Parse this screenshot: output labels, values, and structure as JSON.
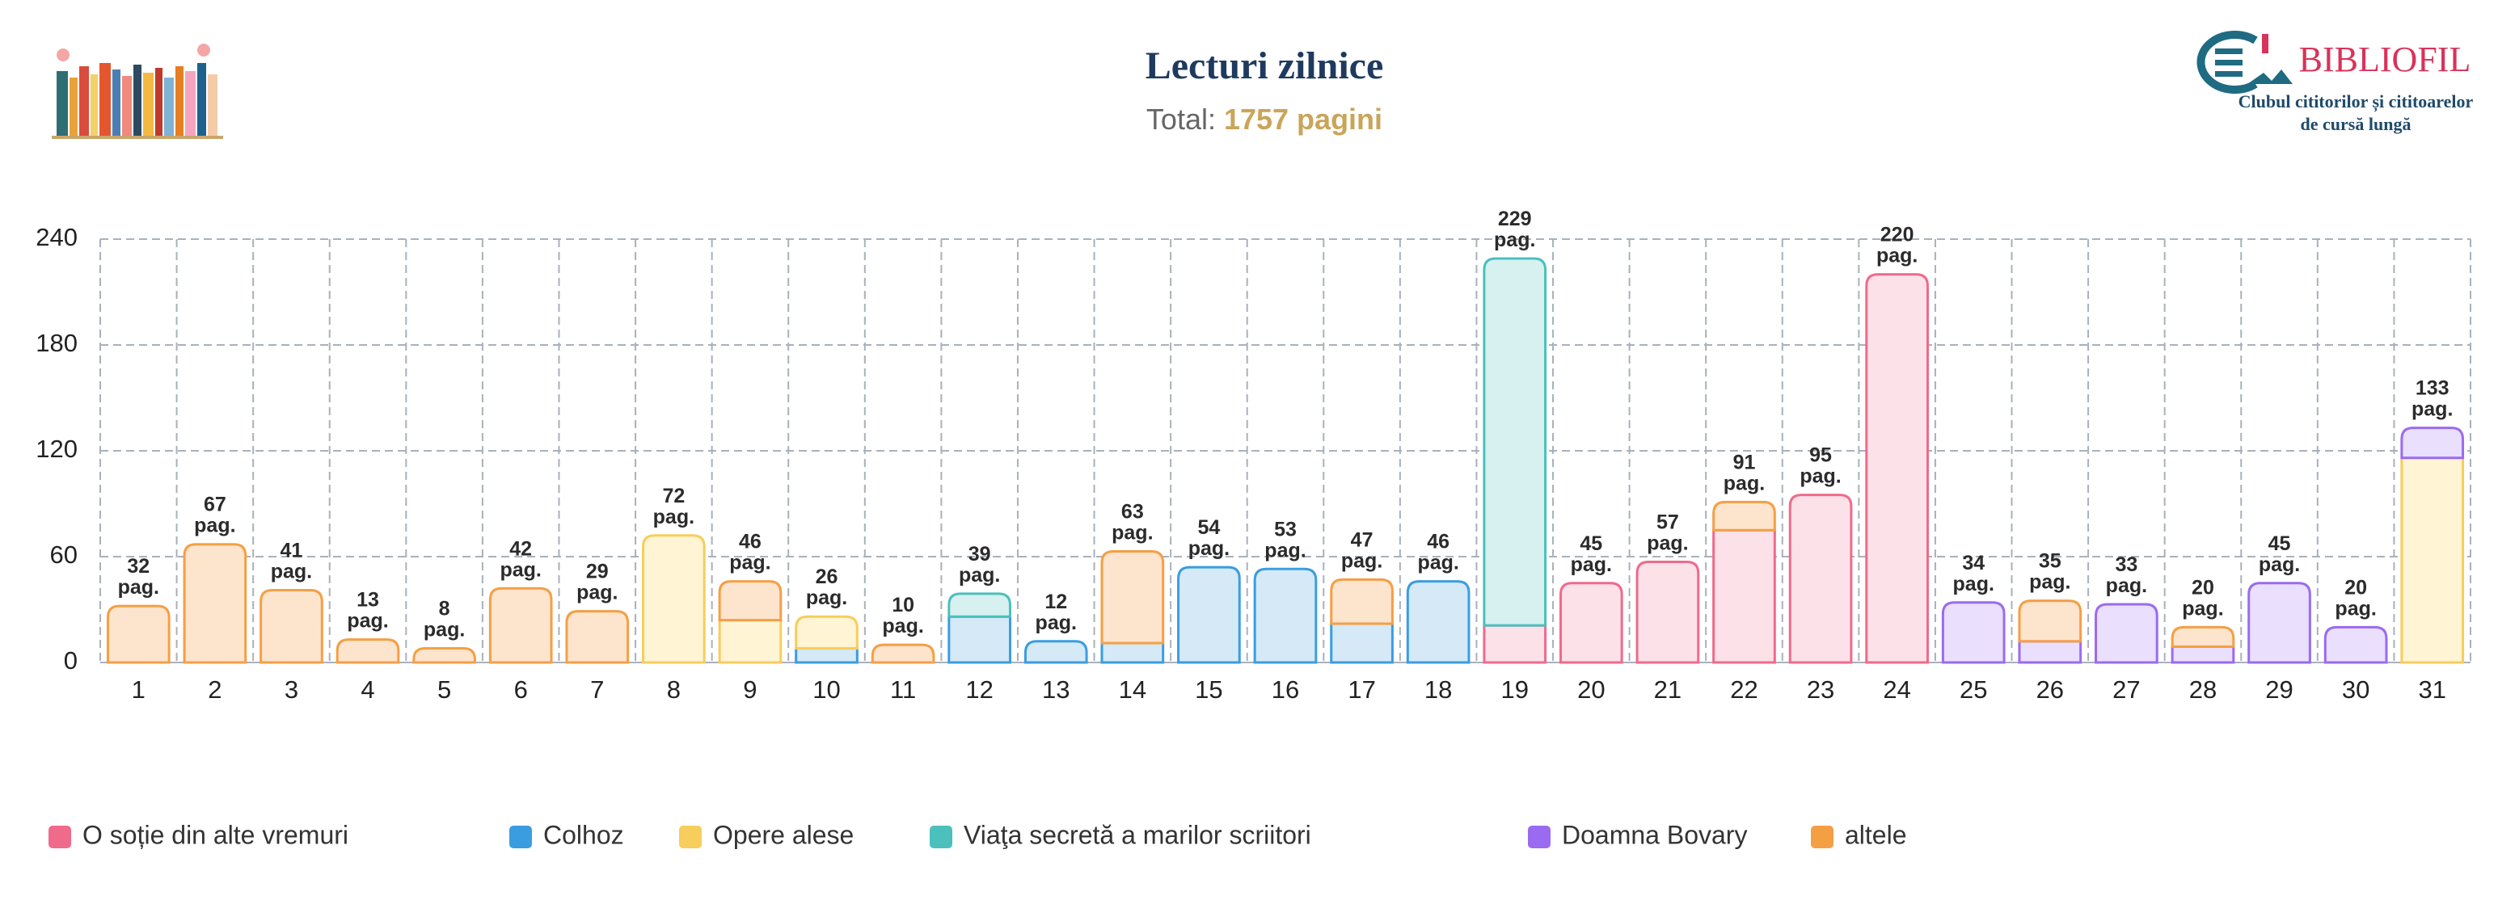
{
  "chart_data": {
    "type": "stacked-bar",
    "title": "Lecturi zilnice",
    "subtitle_label": "Total:",
    "subtitle_value": "1757 pagini",
    "brand": "BIBLIOFIL",
    "brand_tagline": [
      "Clubul cititorilor și cititoarelor",
      "de cursă lungă"
    ],
    "categories": [
      "1",
      "2",
      "3",
      "4",
      "5",
      "6",
      "7",
      "8",
      "9",
      "10",
      "11",
      "12",
      "13",
      "14",
      "15",
      "16",
      "17",
      "18",
      "19",
      "20",
      "21",
      "22",
      "23",
      "24",
      "25",
      "26",
      "27",
      "28",
      "29",
      "30",
      "31"
    ],
    "totals": [
      32,
      67,
      41,
      13,
      8,
      42,
      29,
      72,
      46,
      26,
      10,
      39,
      12,
      63,
      54,
      53,
      47,
      46,
      229,
      45,
      57,
      91,
      95,
      220,
      34,
      35,
      33,
      20,
      45,
      20,
      133
    ],
    "total_unit": "pag.",
    "series": [
      {
        "name": "O soție din alte vremuri",
        "color": "#f06a8c",
        "fill": "#fde1e8",
        "values": [
          null,
          null,
          null,
          null,
          null,
          null,
          null,
          null,
          null,
          null,
          null,
          null,
          null,
          null,
          null,
          null,
          null,
          null,
          21,
          45,
          57,
          75,
          95,
          220,
          null,
          null,
          null,
          null,
          null,
          null,
          null
        ]
      },
      {
        "name": "Colhoz",
        "color": "#3a9de0",
        "fill": "#d5e9f7",
        "values": [
          null,
          null,
          null,
          null,
          null,
          null,
          null,
          null,
          null,
          8,
          null,
          26,
          12,
          11,
          54,
          53,
          22,
          46,
          null,
          null,
          null,
          null,
          null,
          null,
          null,
          null,
          null,
          null,
          null,
          null,
          null
        ]
      },
      {
        "name": "Opere alese",
        "color": "#f7cd5b",
        "fill": "#fff4d4",
        "values": [
          null,
          null,
          null,
          null,
          null,
          null,
          null,
          72,
          24,
          18,
          null,
          null,
          null,
          null,
          null,
          null,
          null,
          null,
          null,
          null,
          null,
          null,
          null,
          null,
          null,
          null,
          null,
          null,
          null,
          null,
          116
        ]
      },
      {
        "name": "Viaţa secretă a marilor scriitori",
        "color": "#4bc0bc",
        "fill": "#d6f1f0",
        "values": [
          null,
          null,
          null,
          null,
          null,
          null,
          null,
          null,
          null,
          null,
          null,
          13,
          null,
          null,
          null,
          null,
          null,
          null,
          208,
          null,
          null,
          null,
          null,
          null,
          null,
          null,
          null,
          null,
          null,
          null,
          null
        ]
      },
      {
        "name": "Doamna Bovary",
        "color": "#9a6bf0",
        "fill": "#eadffc",
        "values": [
          null,
          null,
          null,
          null,
          null,
          null,
          null,
          null,
          null,
          null,
          null,
          null,
          null,
          null,
          null,
          null,
          null,
          null,
          null,
          null,
          null,
          null,
          null,
          null,
          34,
          12,
          33,
          9,
          45,
          20,
          17
        ]
      },
      {
        "name": "altele",
        "color": "#f59f45",
        "fill": "#fde4cd",
        "values": [
          32,
          67,
          41,
          13,
          8,
          42,
          29,
          null,
          22,
          null,
          10,
          null,
          null,
          52,
          null,
          null,
          25,
          null,
          null,
          null,
          null,
          16,
          null,
          null,
          null,
          23,
          null,
          11,
          null,
          null,
          null
        ]
      }
    ],
    "ylim": [
      0,
      240
    ],
    "yticks": [
      0,
      60,
      120,
      180,
      240
    ],
    "grid": true
  }
}
